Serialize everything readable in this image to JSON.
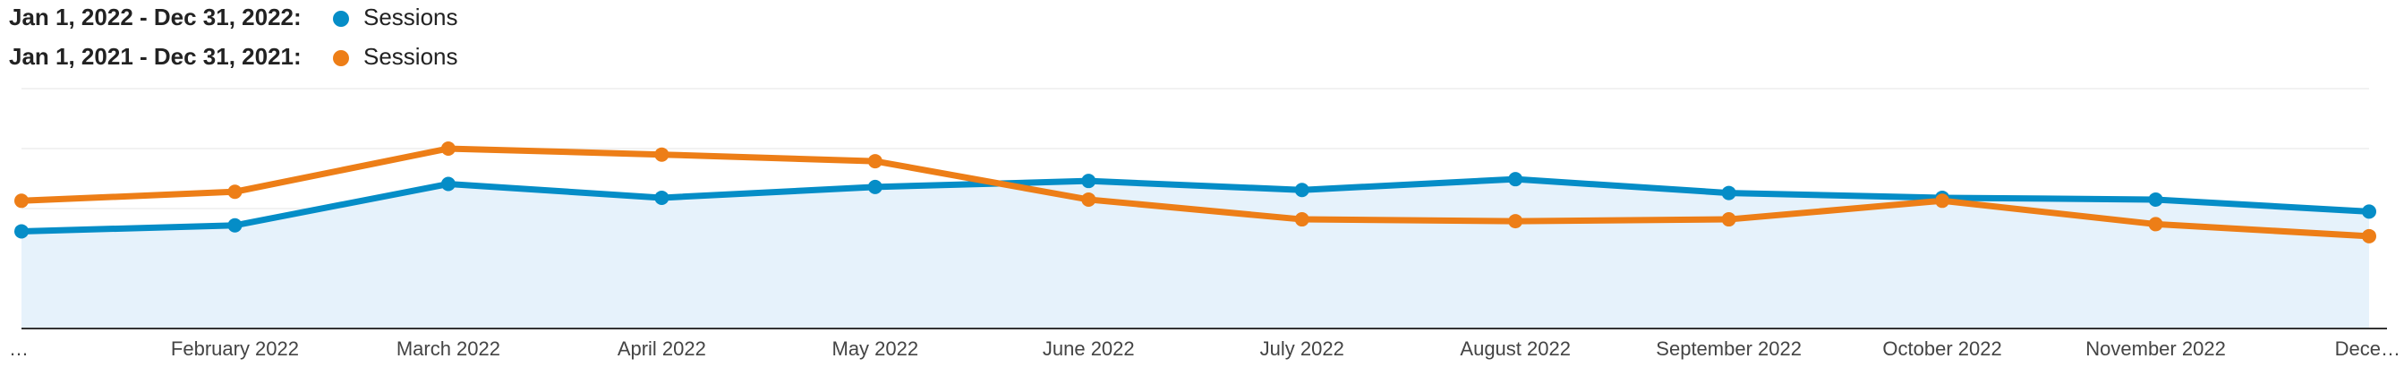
{
  "chart_data": {
    "type": "line",
    "categories": [
      "…",
      "February 2022",
      "March 2022",
      "April 2022",
      "May 2022",
      "June 2022",
      "July 2022",
      "August 2022",
      "September 2022",
      "October 2022",
      "November 2022",
      "Dece…"
    ],
    "series": [
      {
        "period": "Jan 1, 2022 - Dec 31, 2022:",
        "name": "Sessions",
        "color": "#058dc7",
        "area": true,
        "values": [
          1.62,
          1.72,
          2.41,
          2.18,
          2.36,
          2.46,
          2.31,
          2.49,
          2.26,
          2.18,
          2.15,
          1.95
        ]
      },
      {
        "period": "Jan 1, 2021 - Dec 31, 2021:",
        "name": "Sessions",
        "color": "#ed7e17",
        "area": false,
        "values": [
          2.13,
          2.28,
          3.0,
          2.9,
          2.79,
          2.15,
          1.82,
          1.79,
          1.82,
          2.13,
          1.74,
          1.54
        ]
      }
    ],
    "ylim": [
      0,
      4
    ],
    "yticks": [
      1,
      2,
      3,
      4
    ],
    "grid": true
  }
}
